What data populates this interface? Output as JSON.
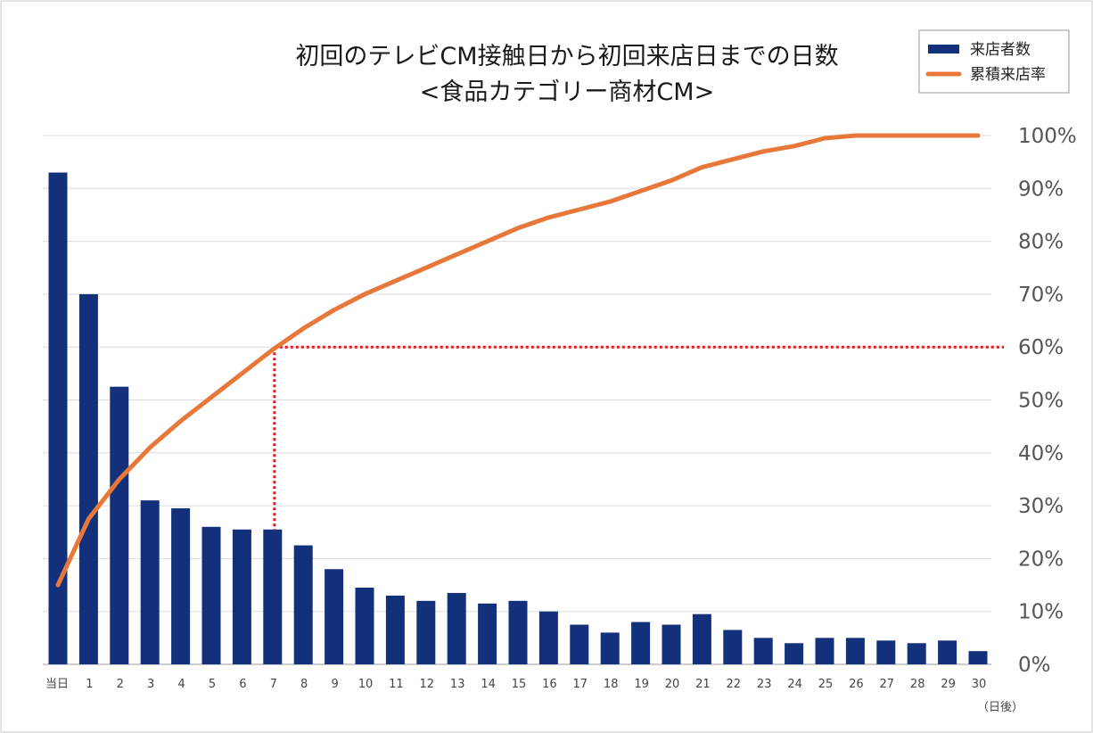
{
  "chart_data": {
    "type": "bar+line",
    "title_lines": [
      "初回のテレビCM接触日から初回来店日までの日数",
      "<食品カテゴリー商材CM>"
    ],
    "categories": [
      "当日",
      "1",
      "2",
      "3",
      "4",
      "5",
      "6",
      "7",
      "8",
      "9",
      "10",
      "11",
      "12",
      "13",
      "14",
      "15",
      "16",
      "17",
      "18",
      "19",
      "20",
      "21",
      "22",
      "23",
      "24",
      "25",
      "26",
      "27",
      "28",
      "29",
      "30"
    ],
    "x_unit_label": "（日後）",
    "series": [
      {
        "name": "来店者数",
        "type": "bar",
        "axis": "unlabeled",
        "color": "#12317a",
        "values": [
          93,
          70,
          52.5,
          31,
          29.5,
          26,
          25.5,
          25.5,
          22.5,
          18,
          14.5,
          13,
          12,
          13.5,
          11.5,
          12,
          10,
          7.5,
          6,
          8,
          7.5,
          9.5,
          6.5,
          5,
          4,
          5,
          5,
          4.5,
          4,
          4.5,
          2.5
        ]
      },
      {
        "name": "累積来店率",
        "type": "line",
        "axis": "right",
        "unit": "%",
        "color": "#e8783a",
        "values": [
          15,
          27.5,
          35,
          41,
          46,
          50.5,
          55,
          59.5,
          63.5,
          67,
          70,
          72.5,
          75,
          77.5,
          80,
          82.5,
          84.5,
          86,
          87.5,
          89.5,
          91.5,
          94,
          95.5,
          97,
          98,
          99.5,
          101,
          102.5,
          103.5,
          104.5,
          105
        ]
      }
    ],
    "bar_scale_max": 100,
    "right_axis": {
      "ticks": [
        "0%",
        "10%",
        "20%",
        "30%",
        "40%",
        "50%",
        "60%",
        "70%",
        "80%",
        "90%",
        "100%"
      ],
      "range": [
        0,
        100
      ]
    },
    "reference_line": {
      "label_day": "7",
      "value": 60,
      "color": "#e0191f",
      "style": "dotted"
    },
    "grid": true,
    "legend": {
      "position": "top-right",
      "entries": [
        {
          "name": "来店者数",
          "marker": "bar",
          "color": "#12317a"
        },
        {
          "name": "累積来店率",
          "marker": "line",
          "color": "#e8783a"
        }
      ]
    }
  }
}
